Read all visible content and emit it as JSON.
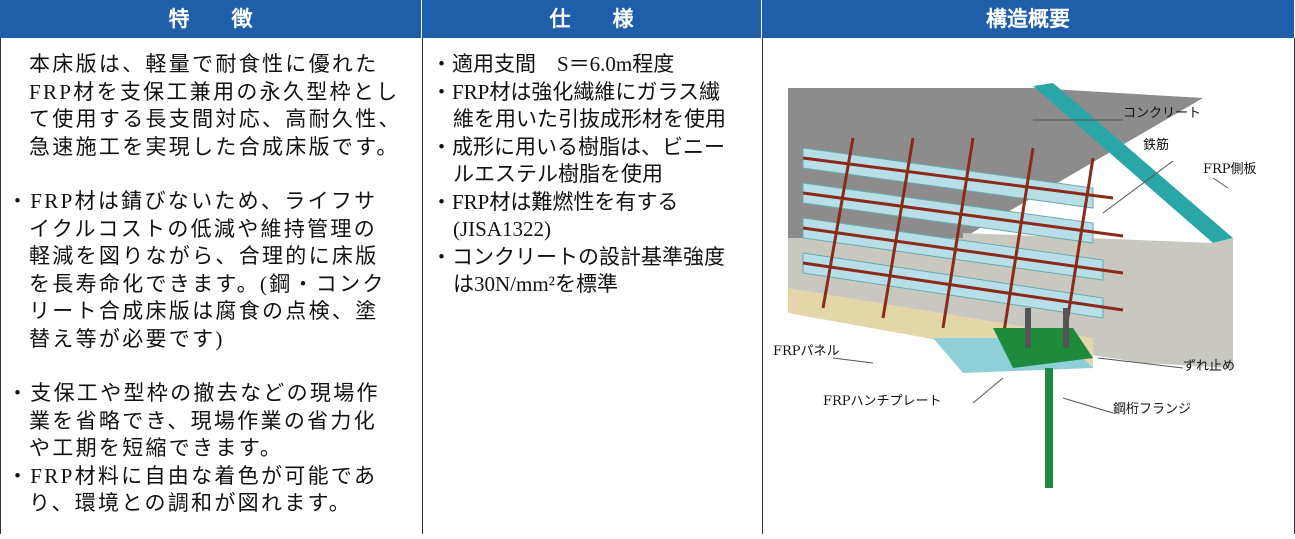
{
  "table": {
    "headers": [
      "特　　徴",
      "仕　　様",
      "構造概要"
    ],
    "features": [
      [
        {
          "lines": [
            "本床版は、軽量で耐食性に優れた",
            "FRP材を支保工兼用の永久型枠とし",
            "て使用する長支間対応、高耐久性、",
            "急速施工を実現した合成床版です。"
          ]
        }
      ],
      [
        {
          "lines": [
            "・FRP材は錆びないため、ライフサ",
            "イクルコストの低減や維持管理の",
            "軽減を図りながら、合理的に床版",
            "を長寿命化できます。(鋼・コンク",
            "リート合成床版は腐食の点検、塗",
            "替え等が必要です)"
          ]
        }
      ],
      [
        {
          "lines": [
            "・支保工や型枠の撤去などの現場作",
            "業を省略でき、現場作業の省力化",
            "や工期を短縮できます。"
          ]
        },
        {
          "lines": [
            "・FRP材料に自由な着色が可能であ",
            "り、環境との調和が図れます。"
          ]
        }
      ]
    ],
    "specs": [
      {
        "lines": [
          "・適用支間　S＝6.0m程度"
        ]
      },
      {
        "lines": [
          "・FRP材は強化繊維にガラス繊",
          "維を用いた引抜成形材を使用"
        ]
      },
      {
        "lines": [
          "・成形に用いる樹脂は、ビニー",
          "ルエステル樹脂を使用"
        ]
      },
      {
        "lines": [
          "・FRP材は難燃性を有する",
          "(JISA1322)"
        ]
      },
      {
        "lines": [
          "・コンクリートの設計基準強度",
          "は30N/mm²を標準"
        ]
      }
    ],
    "diagram_labels": [
      "コンクリート",
      "鉄筋",
      "FRP側板",
      "FRPパネル",
      "ずれ止め",
      "FRPハンチプレート",
      "鋼桁フランジ"
    ]
  }
}
